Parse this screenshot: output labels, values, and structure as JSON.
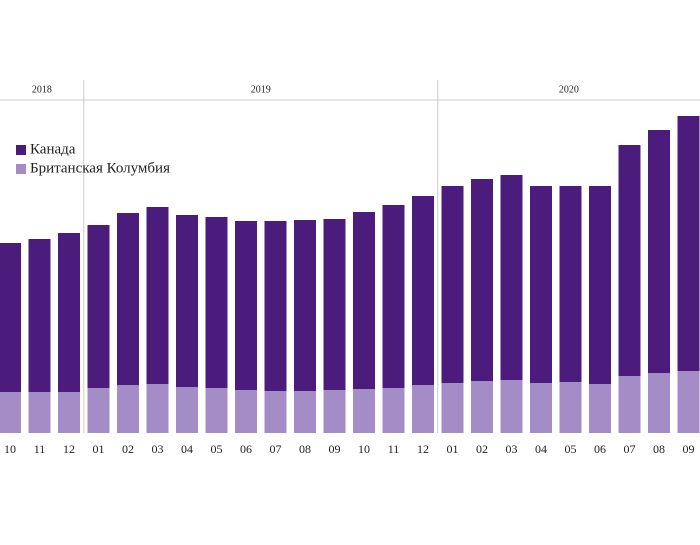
{
  "chart_data": {
    "type": "overlay-bar",
    "categories": [
      "10",
      "11",
      "12",
      "01",
      "02",
      "03",
      "04",
      "05",
      "06",
      "07",
      "08",
      "09",
      "10",
      "11",
      "12",
      "01",
      "02",
      "03",
      "04",
      "05",
      "06",
      "07",
      "08",
      "09"
    ],
    "year_groups": [
      {
        "label": "2018",
        "count": 3
      },
      {
        "label": "2019",
        "count": 12
      },
      {
        "label": "2020",
        "count": 9
      }
    ],
    "series": [
      {
        "name": "Канада",
        "color": "#4b1c7c",
        "values": [
          190,
          194,
          200,
          208,
          220,
          226,
          218,
          216,
          212,
          212,
          213,
          214,
          221,
          228,
          237,
          247,
          254,
          258,
          247,
          247,
          247,
          288,
          303,
          317
        ]
      },
      {
        "name": "Британская Колумбия",
        "color": "#a48cc6",
        "values": [
          41,
          41,
          41,
          45,
          48,
          49,
          46,
          45,
          43,
          42,
          42,
          43,
          44,
          45,
          48,
          50,
          52,
          53,
          50,
          51,
          49,
          57,
          60,
          62
        ]
      }
    ]
  }
}
